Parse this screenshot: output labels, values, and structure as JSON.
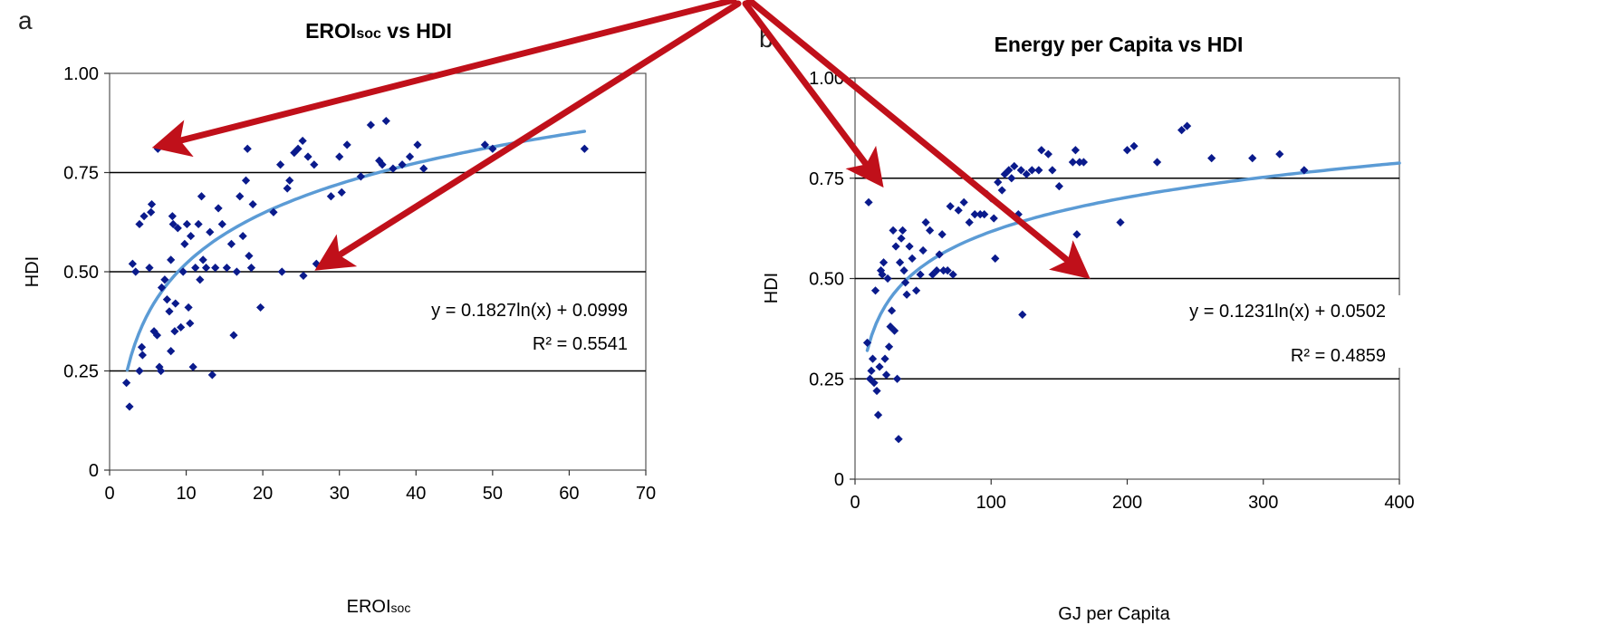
{
  "panel_a": {
    "panel_label": "a",
    "title_main": "EROI",
    "title_sub": "soc",
    "title_rest": " vs HDI",
    "xlabel_main": "EROI",
    "xlabel_sub": "soc",
    "ylabel": "HDI",
    "equation": "y = 0.1827ln(x) + 0.0999",
    "r2": "R² = 0.5541"
  },
  "panel_b": {
    "panel_label": "b",
    "title": "Energy per Capita vs HDI",
    "xlabel": "GJ per Capita",
    "ylabel": "HDI",
    "equation": "y = 0.1231ln(x) + 0.0502",
    "r2": "R² = 0.4859"
  },
  "colors": {
    "points": "#0a1a8c",
    "trend": "#5b9bd5",
    "arrow": "#c0101a",
    "grid": "#000000"
  },
  "chart_data": [
    {
      "type": "scatter",
      "title": "EROIsoc vs HDI",
      "xlabel": "EROIsoc",
      "ylabel": "HDI",
      "xlim": [
        0,
        70
      ],
      "ylim": [
        0,
        1.0
      ],
      "x_ticks": [
        "0",
        "10",
        "20",
        "30",
        "40",
        "50",
        "60",
        "70"
      ],
      "y_ticks": [
        "0",
        "0.25",
        "0.50",
        "0.75",
        "1.00"
      ],
      "grid": "horizontal",
      "trendline": {
        "a": 0.1827,
        "b": 0.0999,
        "x_range": [
          2.3,
          62
        ],
        "form": "a*ln(x)+b"
      },
      "points": [
        [
          6.3,
          0.81
        ],
        [
          2.2,
          0.22
        ],
        [
          2.6,
          0.16
        ],
        [
          3.0,
          0.52
        ],
        [
          3.4,
          0.5
        ],
        [
          3.9,
          0.62
        ],
        [
          4.2,
          0.31
        ],
        [
          4.5,
          0.64
        ],
        [
          3.9,
          0.25
        ],
        [
          4.3,
          0.29
        ],
        [
          5.2,
          0.51
        ],
        [
          5.5,
          0.67
        ],
        [
          5.4,
          0.65
        ],
        [
          5.8,
          0.35
        ],
        [
          6.2,
          0.34
        ],
        [
          6.7,
          0.25
        ],
        [
          6.5,
          0.26
        ],
        [
          6.8,
          0.46
        ],
        [
          7.2,
          0.48
        ],
        [
          7.5,
          0.43
        ],
        [
          7.8,
          0.4
        ],
        [
          8.0,
          0.53
        ],
        [
          8.2,
          0.64
        ],
        [
          8.3,
          0.62
        ],
        [
          8.5,
          0.35
        ],
        [
          8.0,
          0.3
        ],
        [
          8.6,
          0.42
        ],
        [
          8.9,
          0.61
        ],
        [
          9.3,
          0.36
        ],
        [
          9.6,
          0.5
        ],
        [
          9.8,
          0.57
        ],
        [
          10.1,
          0.62
        ],
        [
          10.3,
          0.41
        ],
        [
          10.6,
          0.59
        ],
        [
          10.5,
          0.37
        ],
        [
          10.9,
          0.26
        ],
        [
          11.2,
          0.51
        ],
        [
          11.6,
          0.62
        ],
        [
          11.8,
          0.48
        ],
        [
          12.0,
          0.69
        ],
        [
          12.2,
          0.53
        ],
        [
          12.6,
          0.51
        ],
        [
          13.1,
          0.6
        ],
        [
          13.4,
          0.24
        ],
        [
          13.8,
          0.51
        ],
        [
          14.2,
          0.66
        ],
        [
          14.7,
          0.62
        ],
        [
          15.3,
          0.51
        ],
        [
          15.9,
          0.57
        ],
        [
          16.2,
          0.34
        ],
        [
          16.6,
          0.5
        ],
        [
          17.0,
          0.69
        ],
        [
          17.4,
          0.59
        ],
        [
          17.8,
          0.73
        ],
        [
          18.0,
          0.81
        ],
        [
          18.2,
          0.54
        ],
        [
          18.5,
          0.51
        ],
        [
          18.7,
          0.67
        ],
        [
          19.7,
          0.41
        ],
        [
          21.4,
          0.65
        ],
        [
          22.3,
          0.77
        ],
        [
          22.5,
          0.5
        ],
        [
          23.2,
          0.71
        ],
        [
          23.5,
          0.73
        ],
        [
          24.1,
          0.8
        ],
        [
          24.6,
          0.81
        ],
        [
          25.2,
          0.83
        ],
        [
          25.3,
          0.49
        ],
        [
          25.9,
          0.79
        ],
        [
          26.7,
          0.77
        ],
        [
          27.0,
          0.52
        ],
        [
          28.9,
          0.69
        ],
        [
          30.3,
          0.7
        ],
        [
          30.0,
          0.79
        ],
        [
          31.0,
          0.82
        ],
        [
          32.8,
          0.74
        ],
        [
          34.1,
          0.87
        ],
        [
          35.2,
          0.78
        ],
        [
          35.6,
          0.77
        ],
        [
          36.1,
          0.88
        ],
        [
          37.0,
          0.76
        ],
        [
          38.2,
          0.77
        ],
        [
          39.2,
          0.79
        ],
        [
          40.2,
          0.82
        ],
        [
          41.0,
          0.76
        ],
        [
          49.0,
          0.82
        ],
        [
          50.0,
          0.81
        ],
        [
          62.0,
          0.81
        ]
      ]
    },
    {
      "type": "scatter",
      "title": "Energy per Capita vs HDI",
      "xlabel": "GJ per Capita",
      "ylabel": "HDI",
      "xlim": [
        0,
        400
      ],
      "ylim": [
        0,
        1.0
      ],
      "x_ticks": [
        "0",
        "100",
        "200",
        "300",
        "400"
      ],
      "y_ticks": [
        "0",
        "0.25",
        "0.50",
        "0.75",
        "1.00"
      ],
      "grid": "horizontal",
      "trendline": {
        "a": 0.1231,
        "b": 0.0502,
        "x_range": [
          9,
          400
        ],
        "form": "a*ln(x)+b"
      },
      "points": [
        [
          10,
          0.69
        ],
        [
          9,
          0.34
        ],
        [
          11,
          0.25
        ],
        [
          12,
          0.27
        ],
        [
          13,
          0.3
        ],
        [
          14,
          0.24
        ],
        [
          15,
          0.47
        ],
        [
          16,
          0.22
        ],
        [
          17,
          0.16
        ],
        [
          18,
          0.28
        ],
        [
          19,
          0.52
        ],
        [
          20,
          0.51
        ],
        [
          21,
          0.54
        ],
        [
          22,
          0.3
        ],
        [
          23,
          0.26
        ],
        [
          24,
          0.5
        ],
        [
          25,
          0.33
        ],
        [
          26,
          0.38
        ],
        [
          27,
          0.42
        ],
        [
          28,
          0.62
        ],
        [
          29,
          0.37
        ],
        [
          30,
          0.58
        ],
        [
          31,
          0.25
        ],
        [
          32,
          0.1
        ],
        [
          33,
          0.54
        ],
        [
          34,
          0.6
        ],
        [
          35,
          0.62
        ],
        [
          36,
          0.52
        ],
        [
          37,
          0.49
        ],
        [
          38,
          0.46
        ],
        [
          40,
          0.58
        ],
        [
          42,
          0.55
        ],
        [
          45,
          0.47
        ],
        [
          48,
          0.51
        ],
        [
          50,
          0.57
        ],
        [
          52,
          0.64
        ],
        [
          55,
          0.62
        ],
        [
          57,
          0.51
        ],
        [
          60,
          0.52
        ],
        [
          62,
          0.56
        ],
        [
          64,
          0.61
        ],
        [
          65,
          0.52
        ],
        [
          68,
          0.52
        ],
        [
          70,
          0.68
        ],
        [
          72,
          0.51
        ],
        [
          76,
          0.67
        ],
        [
          80,
          0.69
        ],
        [
          84,
          0.64
        ],
        [
          88,
          0.66
        ],
        [
          92,
          0.66
        ],
        [
          95,
          0.66
        ],
        [
          97,
          0.71
        ],
        [
          100,
          0.7
        ],
        [
          102,
          0.65
        ],
        [
          103,
          0.55
        ],
        [
          105,
          0.74
        ],
        [
          108,
          0.72
        ],
        [
          110,
          0.76
        ],
        [
          113,
          0.77
        ],
        [
          115,
          0.75
        ],
        [
          117,
          0.78
        ],
        [
          120,
          0.66
        ],
        [
          122,
          0.77
        ],
        [
          123,
          0.41
        ],
        [
          126,
          0.76
        ],
        [
          130,
          0.77
        ],
        [
          135,
          0.77
        ],
        [
          137,
          0.82
        ],
        [
          142,
          0.81
        ],
        [
          145,
          0.77
        ],
        [
          150,
          0.73
        ],
        [
          160,
          0.79
        ],
        [
          162,
          0.82
        ],
        [
          163,
          0.61
        ],
        [
          165,
          0.79
        ],
        [
          168,
          0.79
        ],
        [
          195,
          0.64
        ],
        [
          200,
          0.82
        ],
        [
          205,
          0.83
        ],
        [
          222,
          0.79
        ],
        [
          240,
          0.87
        ],
        [
          244,
          0.88
        ],
        [
          262,
          0.8
        ],
        [
          292,
          0.8
        ],
        [
          312,
          0.81
        ],
        [
          330,
          0.77
        ]
      ]
    }
  ]
}
